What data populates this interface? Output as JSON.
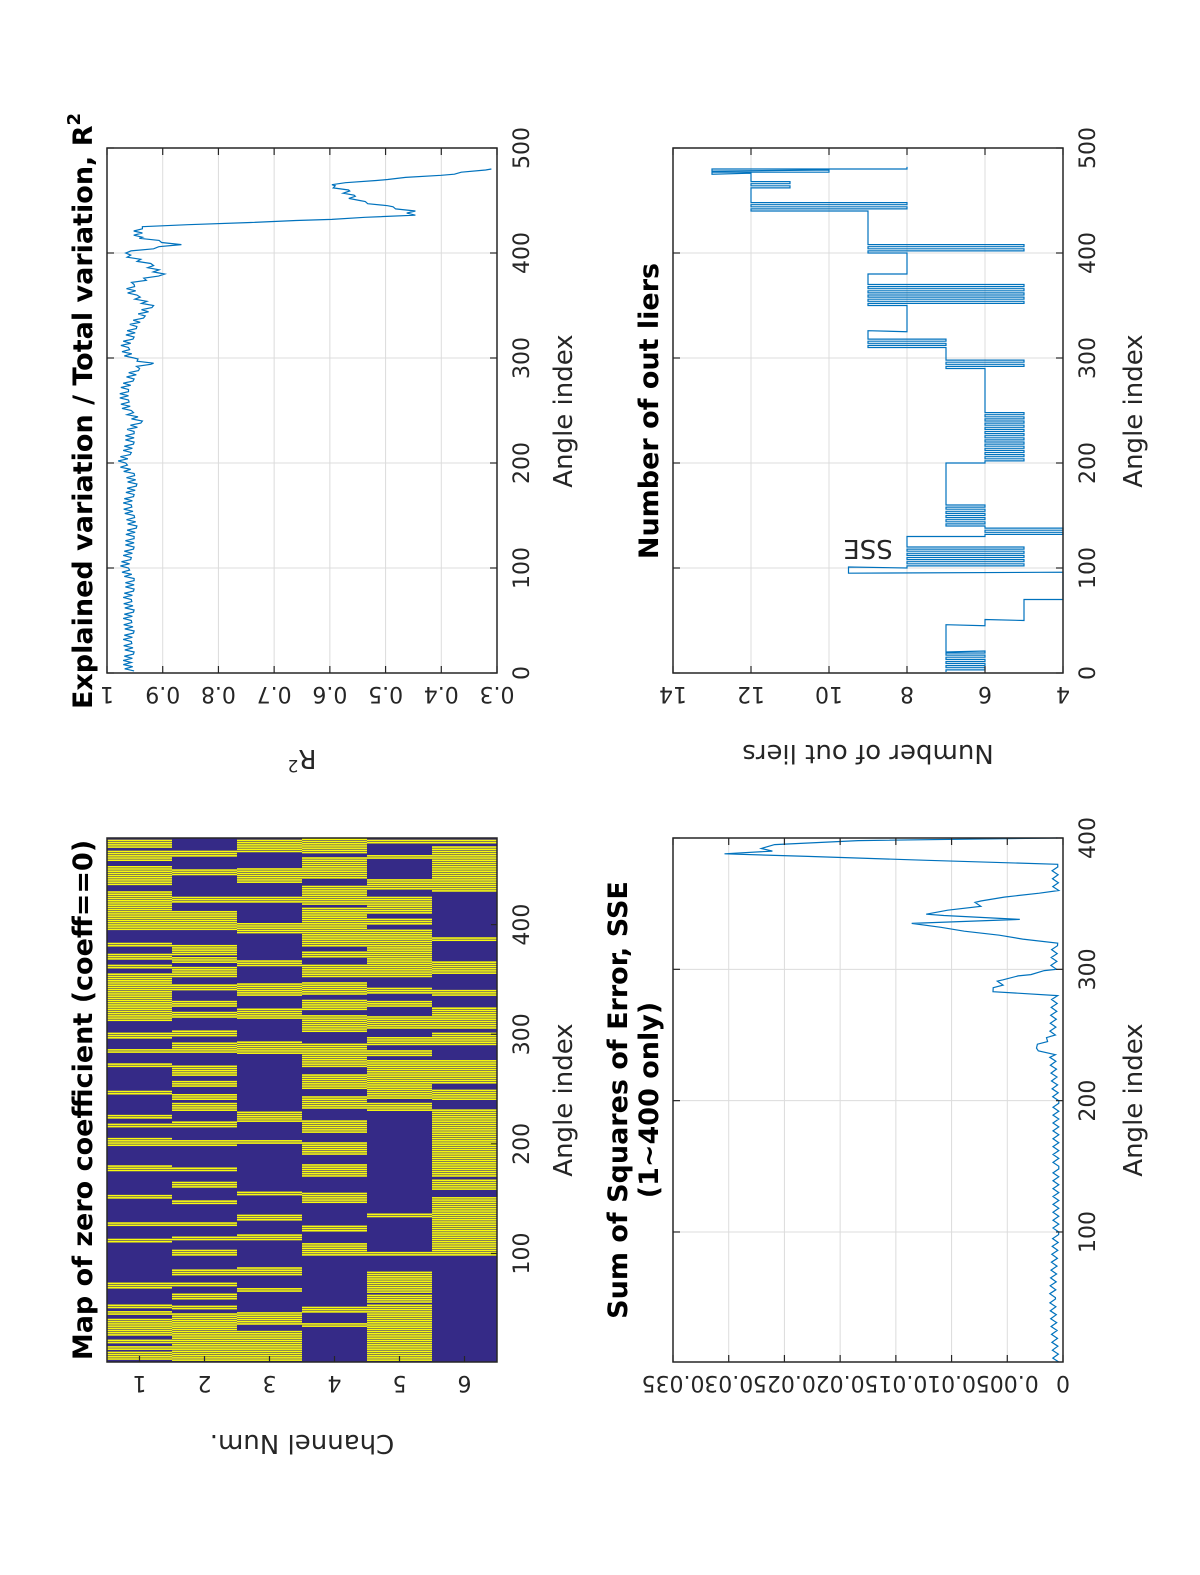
{
  "figure": {
    "orientation": "rotated 90 degrees counter-clockwise (landscape page)",
    "line_color": "#0072bd",
    "heatmap_zero_color": "#f9fb0e",
    "heatmap_nonzero_color": "#352a87"
  },
  "chart_data": [
    {
      "id": "zero-coeff-map",
      "type": "heatmap",
      "title": "Map of zero coefficient (coeff==0)",
      "xlabel": "Angle index",
      "ylabel": "Channel Num.",
      "x_ticks": [
        100,
        200,
        300,
        400
      ],
      "y_ticks": [
        1,
        2,
        3,
        4,
        5,
        6
      ],
      "xlim": [
        1,
        479
      ],
      "ylim": [
        0.5,
        6.5
      ],
      "grid": false,
      "values_description": "Binary map: yellow = coefficient equal to zero, dark blue = nonzero",
      "zero_intervals": {
        "1": [
          [
            3,
            9
          ],
          [
            12,
            14
          ],
          [
            18,
            20
          ],
          [
            25,
            40
          ],
          [
            44,
            47
          ],
          [
            50,
            52
          ],
          [
            68,
            72
          ],
          [
            110,
            112
          ],
          [
            125,
            127
          ],
          [
            150,
            152
          ],
          [
            175,
            180
          ],
          [
            198,
            205
          ],
          [
            215,
            217
          ],
          [
            223,
            226
          ],
          [
            245,
            248
          ],
          [
            270,
            272
          ],
          [
            283,
            285
          ],
          [
            296,
            300
          ],
          [
            312,
            355
          ],
          [
            360,
            362
          ],
          [
            368,
            372
          ],
          [
            380,
            383
          ],
          [
            395,
            430
          ],
          [
            436,
            452
          ],
          [
            458,
            466
          ],
          [
            470,
            477
          ]
        ],
        "2": [
          [
            2,
            45
          ],
          [
            49,
            52
          ],
          [
            58,
            62
          ],
          [
            70,
            72
          ],
          [
            80,
            85
          ],
          [
            98,
            103
          ],
          [
            112,
            115
          ],
          [
            125,
            128
          ],
          [
            145,
            148
          ],
          [
            160,
            164
          ],
          [
            175,
            178
          ],
          [
            198,
            203
          ],
          [
            215,
            219
          ],
          [
            230,
            236
          ],
          [
            240,
            244
          ],
          [
            252,
            256
          ],
          [
            262,
            270
          ],
          [
            283,
            292
          ],
          [
            298,
            303
          ],
          [
            315,
            320
          ],
          [
            325,
            330
          ],
          [
            340,
            345
          ],
          [
            352,
            360
          ],
          [
            365,
            370
          ],
          [
            372,
            380
          ],
          [
            395,
            412
          ],
          [
            420,
            425
          ],
          [
            445,
            450
          ],
          [
            462,
            466
          ]
        ],
        "3": [
          [
            2,
            28
          ],
          [
            35,
            45
          ],
          [
            65,
            68
          ],
          [
            80,
            86
          ],
          [
            112,
            116
          ],
          [
            130,
            134
          ],
          [
            153,
            156
          ],
          [
            200,
            203
          ],
          [
            220,
            228
          ],
          [
            282,
            292
          ],
          [
            314,
            322
          ],
          [
            335,
            346
          ],
          [
            362,
            366
          ],
          [
            392,
            400
          ],
          [
            420,
            424
          ],
          [
            438,
            450
          ],
          [
            466,
            476
          ]
        ],
        "4": [
          [
            33,
            35
          ],
          [
            46,
            50
          ],
          [
            98,
            108
          ],
          [
            120,
            124
          ],
          [
            146,
            154
          ],
          [
            170,
            180
          ],
          [
            190,
            200
          ],
          [
            210,
            220
          ],
          [
            232,
            242
          ],
          [
            250,
            262
          ],
          [
            270,
            290
          ],
          [
            302,
            316
          ],
          [
            322,
            330
          ],
          [
            336,
            347
          ],
          [
            352,
            362
          ],
          [
            370,
            375
          ],
          [
            380,
            414
          ],
          [
            418,
            435
          ],
          [
            442,
            460
          ],
          [
            465,
            478
          ]
        ],
        "5": [
          [
            2,
            20
          ],
          [
            22,
            52
          ],
          [
            55,
            62
          ],
          [
            64,
            82
          ],
          [
            98,
            100
          ],
          [
            133,
            136
          ],
          [
            230,
            237
          ],
          [
            241,
            276
          ],
          [
            280,
            285
          ],
          [
            290,
            296
          ],
          [
            305,
            315
          ],
          [
            325,
            330
          ],
          [
            337,
            342
          ],
          [
            352,
            394
          ],
          [
            400,
            405
          ],
          [
            410,
            425
          ],
          [
            432,
            440
          ],
          [
            460,
            462
          ],
          [
            474,
            476
          ]
        ],
        "6": [
          [
            98,
            150
          ],
          [
            158,
            166
          ],
          [
            170,
            230
          ],
          [
            240,
            248
          ],
          [
            255,
            275
          ],
          [
            290,
            300
          ],
          [
            305,
            323
          ],
          [
            335,
            340
          ],
          [
            355,
            365
          ],
          [
            385,
            388
          ],
          [
            430,
            470
          ],
          [
            474,
            476
          ]
        ]
      }
    },
    {
      "id": "r-squared",
      "type": "line",
      "title": "Explained variation / Total variation, R",
      "title_superscript": "2",
      "xlabel": "Angle index",
      "ylabel": "R",
      "ylabel_superscript": "2",
      "x_ticks": [
        0,
        100,
        200,
        300,
        400,
        500
      ],
      "y_ticks": [
        0.3,
        0.4,
        0.5,
        0.6,
        0.7,
        0.8,
        0.9,
        1
      ],
      "xlim": [
        0,
        500
      ],
      "ylim": [
        0.3,
        1
      ],
      "y_reversed": true,
      "grid": true,
      "series": [
        {
          "name": "R2",
          "description": "Oscillating around 0.965–0.985 for angles 1–430, sharp drops to ~0.45 between 430–480",
          "x": [
            2,
            10,
            20,
            30,
            40,
            50,
            60,
            70,
            80,
            90,
            100,
            110,
            120,
            130,
            140,
            150,
            160,
            170,
            180,
            190,
            200,
            210,
            220,
            230,
            240,
            250,
            260,
            270,
            280,
            290,
            295,
            300,
            310,
            320,
            330,
            340,
            350,
            360,
            370,
            380,
            390,
            400,
            408,
            415,
            425,
            432,
            436,
            440,
            445,
            450,
            455,
            460,
            465,
            470,
            475,
            480
          ],
          "y": [
            0.955,
            0.96,
            0.955,
            0.96,
            0.955,
            0.96,
            0.955,
            0.96,
            0.955,
            0.955,
            0.965,
            0.96,
            0.955,
            0.955,
            0.95,
            0.955,
            0.96,
            0.955,
            0.95,
            0.955,
            0.97,
            0.96,
            0.955,
            0.955,
            0.94,
            0.96,
            0.965,
            0.965,
            0.955,
            0.945,
            0.92,
            0.955,
            0.965,
            0.955,
            0.95,
            0.935,
            0.92,
            0.95,
            0.955,
            0.9,
            0.925,
            0.97,
            0.87,
            0.94,
            0.94,
            0.6,
            0.45,
            0.45,
            0.5,
            0.55,
            0.56,
            0.57,
            0.6,
            0.5,
            0.38,
            0.31
          ]
        }
      ]
    },
    {
      "id": "sse",
      "type": "line",
      "title": "Sum of Squares of Error, SSE",
      "subtitle": "(1~400 only)",
      "xlabel": "Angle index",
      "ylabel": "SSE",
      "x_ticks": [
        100,
        200,
        300,
        400
      ],
      "y_ticks": [
        0,
        0.005,
        0.01,
        0.015,
        0.02,
        0.025,
        0.03,
        0.035
      ],
      "y_tick_labels": [
        "0",
        "0.005",
        "0.01",
        "0.015",
        "0.02",
        "0.025",
        "0.03",
        "0.035"
      ],
      "xlim": [
        1,
        400
      ],
      "ylim": [
        0,
        0.035
      ],
      "y_reversed": true,
      "grid": true,
      "series": [
        {
          "name": "SSE",
          "description": "Near zero (~0.001) with small periodic ripple; spikes near 283–300 (~0.006), 335–355 (~0.013), 385–400 (~0.031)",
          "x": [
            1,
            50,
            100,
            150,
            200,
            235,
            240,
            245,
            250,
            280,
            283,
            288,
            292,
            296,
            300,
            320,
            335,
            338,
            342,
            348,
            352,
            360,
            380,
            388,
            390,
            392,
            395,
            398,
            400
          ],
          "y": [
            0.0005,
            0.0008,
            0.0005,
            0.0005,
            0.0005,
            0.0008,
            0.0025,
            0.0015,
            0.0008,
            0.0006,
            0.0064,
            0.0055,
            0.0055,
            0.003,
            0.0007,
            0.0006,
            0.0137,
            0.004,
            0.0124,
            0.0075,
            0.0075,
            0.0005,
            0.0006,
            0.0305,
            0.0262,
            0.0272,
            0.026,
            0.0185,
            0.0005
          ]
        }
      ]
    },
    {
      "id": "outliers",
      "type": "line",
      "title": "Number of out liers",
      "xlabel": "Angle index",
      "ylabel": "Number of out liers",
      "x_ticks": [
        0,
        100,
        200,
        300,
        400,
        500
      ],
      "y_ticks": [
        4,
        6,
        8,
        10,
        12,
        14
      ],
      "xlim": [
        0,
        500
      ],
      "ylim": [
        4,
        14
      ],
      "y_reversed": true,
      "grid": true,
      "series": [
        {
          "name": "outliers",
          "description": "Stair-step: 6–7 for 1–45, 4–5 for 45–95, jump to 9.5 at ~97, 5–8 for 100–300, 7 then 9 around 320, 5–8 until ~405, 8–9 for 405–440, 8–12 for 440–480, peak 13 at ~478",
          "x": [
            1,
            20,
            45,
            50,
            70,
            95,
            97,
            100,
            120,
            130,
            140,
            160,
            200,
            250,
            290,
            300,
            310,
            320,
            325,
            330,
            350,
            370,
            380,
            400,
            410,
            420,
            440,
            450,
            460,
            470,
            475,
            478,
            480
          ],
          "y": [
            6,
            7,
            6,
            5,
            4,
            4,
            9.5,
            5,
            8,
            4,
            6,
            7,
            5,
            6,
            5,
            7,
            7,
            9,
            8,
            8,
            5,
            9,
            8,
            5,
            9,
            9,
            8,
            12,
            11,
            12,
            10,
            13,
            8
          ]
        }
      ]
    }
  ]
}
